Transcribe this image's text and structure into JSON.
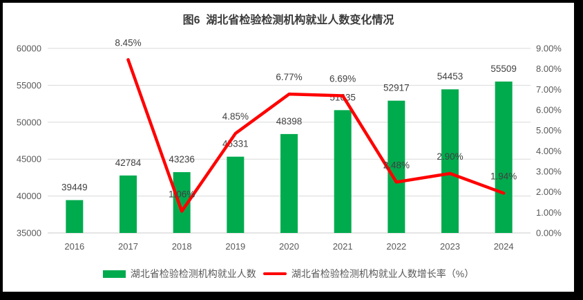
{
  "chart_data": {
    "type": "combo-bar-line",
    "title": "图6  湖北省检验检测机构就业人数变化情况",
    "categories": [
      "2016",
      "2017",
      "2018",
      "2019",
      "2020",
      "2021",
      "2022",
      "2023",
      "2024"
    ],
    "series": [
      {
        "name": "湖北省检验检测机构就业人数",
        "type": "bar",
        "axis": "left",
        "color": "#00AB4E",
        "values": [
          39449,
          42784,
          43236,
          45331,
          48398,
          51635,
          52917,
          54453,
          55509
        ],
        "point_labels": [
          "39449",
          "42784",
          "43236",
          "45331",
          "48398",
          "51635",
          "52917",
          "54453",
          "55509"
        ]
      },
      {
        "name": "湖北省检验检测机构就业人数增长率（%）",
        "type": "line",
        "axis": "right",
        "color": "#FF0000",
        "values": [
          null,
          8.45,
          1.06,
          4.85,
          6.77,
          6.69,
          2.48,
          2.9,
          1.94
        ],
        "point_labels": [
          "",
          "8.45%",
          "1.06%",
          "4.85%",
          "6.77%",
          "6.69%",
          "2.48%",
          "2.90%",
          "1.94%"
        ]
      }
    ],
    "left_axis": {
      "min": 35000,
      "max": 60000,
      "step": 5000,
      "ticks": [
        "35000",
        "40000",
        "45000",
        "50000",
        "55000",
        "60000"
      ]
    },
    "right_axis": {
      "min": 0,
      "max": 9,
      "step": 1,
      "ticks": [
        "0.00%",
        "1.00%",
        "2.00%",
        "3.00%",
        "4.00%",
        "5.00%",
        "6.00%",
        "7.00%",
        "8.00%",
        "9.00%"
      ]
    },
    "grid": true,
    "legend_position": "bottom",
    "style": {
      "bar_color": "#00AB4E",
      "line_color": "#FF0000",
      "grid_color": "#D9D9D9",
      "axis_line_color": "#C9C9C9",
      "axis_text_color": "#595959",
      "data_label_color": "#404040",
      "title_color": "#3A3A3A",
      "frame_color": "#000000",
      "background": "#FFFFFF"
    }
  }
}
